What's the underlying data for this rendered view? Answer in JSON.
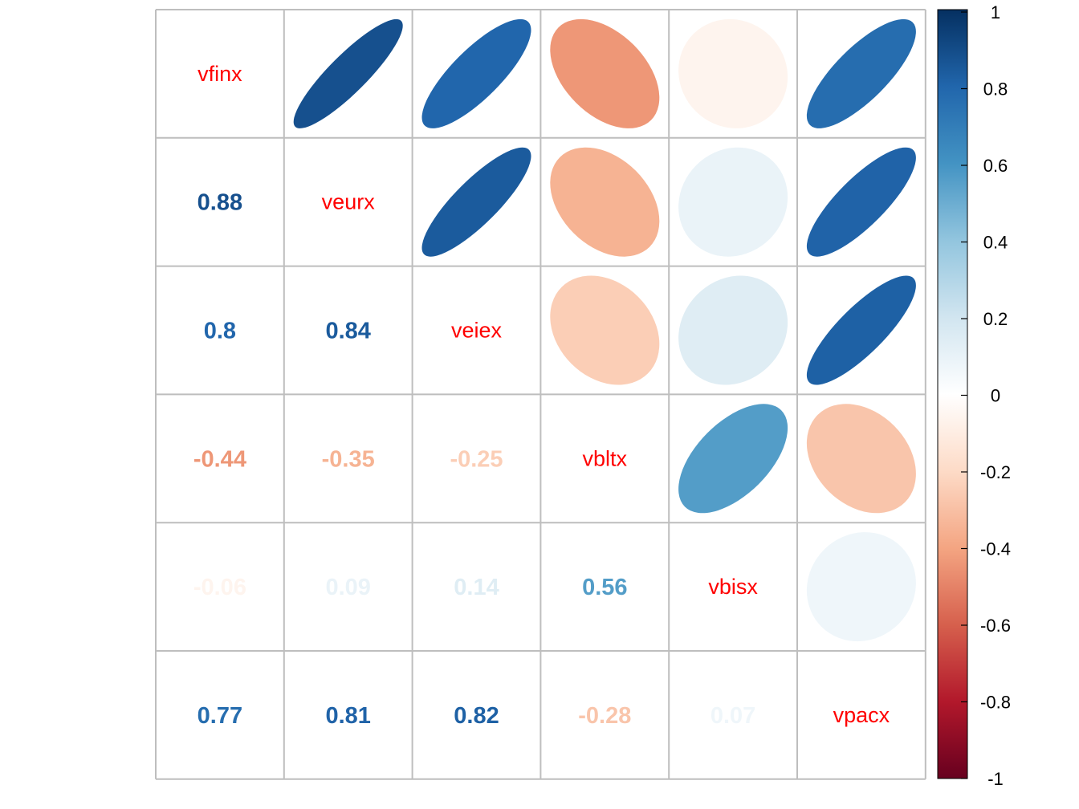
{
  "chart_data": {
    "type": "heatmap",
    "subtype": "correlation-matrix-mixed",
    "lower_method": "number",
    "upper_method": "ellipse",
    "diagonal": "variable-names",
    "variables": [
      "vfinx",
      "veurx",
      "veiex",
      "vbltx",
      "vbisx",
      "vpacx"
    ],
    "matrix": [
      [
        1,
        0.88,
        0.8,
        -0.44,
        -0.06,
        0.77
      ],
      [
        0.88,
        1,
        0.84,
        -0.35,
        0.09,
        0.81
      ],
      [
        0.8,
        0.84,
        1,
        -0.25,
        0.14,
        0.82
      ],
      [
        -0.44,
        -0.35,
        -0.25,
        1,
        0.56,
        -0.28
      ],
      [
        -0.06,
        0.09,
        0.14,
        0.56,
        1,
        0.07
      ],
      [
        0.77,
        0.81,
        0.82,
        -0.28,
        0.07,
        1
      ]
    ],
    "colorbar": {
      "range": [
        -1,
        1
      ],
      "ticks": [
        "1",
        "0.8",
        "0.6",
        "0.4",
        "0.2",
        "0",
        "-0.2",
        "-0.4",
        "-0.6",
        "-0.8",
        "-1"
      ],
      "palette": [
        "#67001F",
        "#B2182B",
        "#D6604D",
        "#F4A582",
        "#FDDBC7",
        "#FFFFFF",
        "#D1E5F0",
        "#92C5DE",
        "#4393C3",
        "#2166AC",
        "#053061"
      ]
    },
    "diagonal_label_color": "#FF0000",
    "grid_color": "#BEBEBE"
  }
}
